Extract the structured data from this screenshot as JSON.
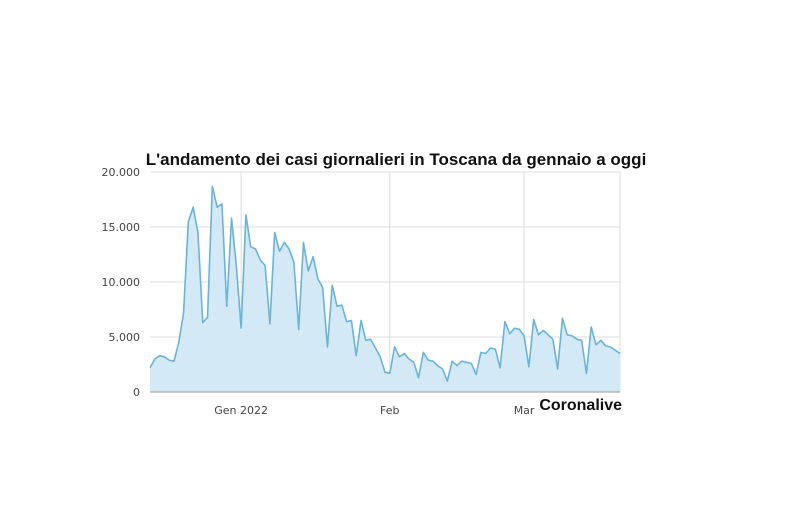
{
  "chart_data": {
    "type": "area",
    "title": "L'andamento dei casi giornalieri in Toscana da gennaio a oggi",
    "xlabel": "",
    "ylabel": "",
    "ylim": [
      0,
      20000
    ],
    "y_ticks": [
      {
        "value": 0,
        "label": "0"
      },
      {
        "value": 5000,
        "label": "5.000"
      },
      {
        "value": 10000,
        "label": "10.000"
      },
      {
        "value": 15000,
        "label": "15.000"
      },
      {
        "value": 20000,
        "label": "20.000"
      }
    ],
    "x_ticks": [
      {
        "value": 19,
        "label": "Gen 2022"
      },
      {
        "value": 50,
        "label": "Feb"
      },
      {
        "value": 78,
        "label": "Mar"
      }
    ],
    "xlim": [
      0,
      98
    ],
    "grid": true,
    "fill_color": "#d3e9f5",
    "line_color": "#6bb3d8",
    "grid_color": "#dcdcdc",
    "watermark": "Coronalive",
    "x": [
      0,
      1,
      2,
      3,
      4,
      5,
      6,
      7,
      8,
      9,
      10,
      11,
      12,
      13,
      14,
      15,
      16,
      17,
      18,
      19,
      20,
      21,
      22,
      23,
      24,
      25,
      26,
      27,
      28,
      29,
      30,
      31,
      32,
      33,
      34,
      35,
      36,
      37,
      38,
      39,
      40,
      41,
      42,
      43,
      44,
      45,
      46,
      47,
      48,
      49,
      50,
      51,
      52,
      53,
      54,
      55,
      56,
      57,
      58,
      59,
      60,
      61,
      62,
      63,
      64,
      65,
      66,
      67,
      68,
      69,
      70,
      71,
      72,
      73,
      74,
      75,
      76,
      77,
      78,
      79,
      80,
      81,
      82,
      83,
      84,
      85,
      86,
      87,
      88,
      89,
      90,
      91,
      92,
      93,
      94,
      95,
      96,
      97,
      98
    ],
    "y": [
      2200,
      3000,
      3300,
      3200,
      2900,
      2800,
      4500,
      7200,
      15500,
      16800,
      14500,
      6300,
      6800,
      18700,
      16800,
      17100,
      7800,
      15800,
      11500,
      5800,
      16100,
      13200,
      13000,
      12000,
      11500,
      6200,
      14500,
      12800,
      13600,
      13000,
      11800,
      5700,
      13600,
      11000,
      12300,
      10300,
      9500,
      4100,
      9700,
      7800,
      7900,
      6400,
      6500,
      3300,
      6500,
      4700,
      4800,
      4000,
      3200,
      1800,
      1700,
      4100,
      3200,
      3500,
      3000,
      2700,
      1300,
      3600,
      2900,
      2800,
      2400,
      2100,
      1000,
      2800,
      2400,
      2800,
      2700,
      2600,
      1600,
      3600,
      3500,
      4000,
      3900,
      2200,
      6400,
      5300,
      5800,
      5700,
      5100,
      2300,
      6600,
      5200,
      5600,
      5200,
      4800,
      2100,
      6700,
      5200,
      5100,
      4800,
      4700,
      1700,
      5900,
      4300,
      4700,
      4200,
      4100,
      3800,
      3500
    ]
  }
}
